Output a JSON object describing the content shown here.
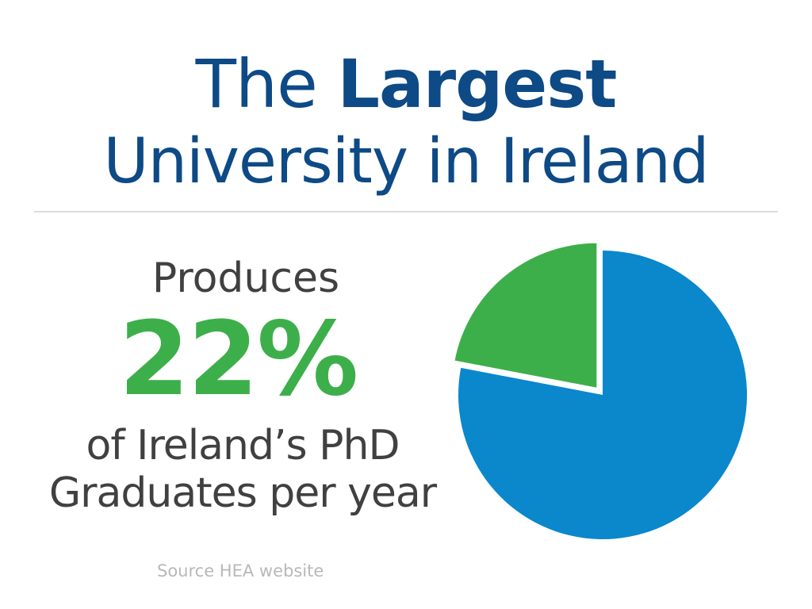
{
  "title": {
    "line1_regular": "The ",
    "line1_bold": "Largest",
    "line2": "University in Ireland"
  },
  "stat": {
    "lead": "Produces",
    "value": "22%",
    "description_line1": "of Ireland’s PhD",
    "description_line2": "Graduates per year"
  },
  "source": "Source HEA website",
  "colors": {
    "title": "#0d4a86",
    "accent_green": "#3daf4a",
    "pie_blue": "#0b87cc",
    "text_gray": "#404040",
    "source_gray": "#b8b8b8"
  },
  "chart_data": {
    "type": "pie",
    "slices": [
      {
        "value": 22,
        "color": "#3daf4a",
        "exploded": true
      },
      {
        "value": 78,
        "color": "#0b87cc",
        "exploded": false
      }
    ],
    "start_angle_deg": 0,
    "direction": "counterclockwise",
    "legend": "none"
  }
}
